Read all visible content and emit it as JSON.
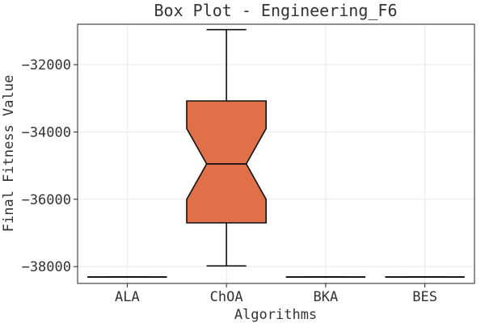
{
  "chart_data": {
    "type": "box",
    "title": "Box Plot - Engineering_F6",
    "xlabel": "Algorithms",
    "ylabel": "Final Fitness Value",
    "categories": [
      "ALA",
      "ChOA",
      "BKA",
      "BES"
    ],
    "ylim": [
      -38500,
      -30800
    ],
    "yticks": [
      -38000,
      -36000,
      -34000,
      -32000
    ],
    "ytick_labels": [
      "−38000",
      "−36000",
      "−34000",
      "−32000"
    ],
    "grid": true,
    "notch": true,
    "box_color": "#e07048",
    "line_color": "#111111",
    "series": [
      {
        "name": "ALA",
        "whislo": -38310,
        "q1": -38310,
        "med": -38310,
        "q3": -38310,
        "whishi": -38310,
        "notch_lo": -38310,
        "notch_hi": -38310
      },
      {
        "name": "ChOA",
        "whislo": -37980,
        "q1": -36700,
        "med": -34950,
        "q3": -33080,
        "whishi": -30960,
        "notch_lo": -36000,
        "notch_hi": -33900
      },
      {
        "name": "BKA",
        "whislo": -38310,
        "q1": -38310,
        "med": -38310,
        "q3": -38310,
        "whishi": -38310,
        "notch_lo": -38310,
        "notch_hi": -38310
      },
      {
        "name": "BES",
        "whislo": -38310,
        "q1": -38310,
        "med": -38310,
        "q3": -38310,
        "whishi": -38310,
        "notch_lo": -38310,
        "notch_hi": -38310
      }
    ]
  }
}
